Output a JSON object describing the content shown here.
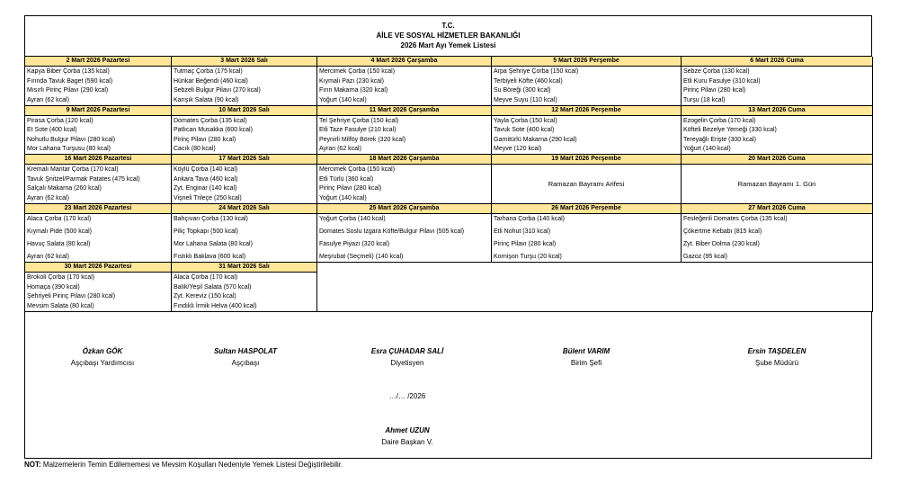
{
  "header": {
    "line1": "T.C.",
    "line2": "AİLE VE SOSYAL HİZMETLER BAKANLIĞI",
    "line3": "2026 Mart Ayı Yemek Listesi"
  },
  "weeks": [
    {
      "days": [
        {
          "date": "2 Mart 2026 Pazartesi",
          "items": [
            "Kapya Biber Çorba (135 kcal)",
            "Fırında Tavuk Baget (590 kcal)",
            "Mısırlı Pirinç Pilavı (290 kcal)",
            "Ayran (62 kcal)"
          ]
        },
        {
          "date": "3 Mart 2026 Salı",
          "items": [
            "Tutmaç Çorba (175 kcal)",
            "Hünkar Beğendi (460 kcal)",
            "Sebzeli Bulgur Pilavı (270 kcal)",
            "Karışık Salata (90 kcal)"
          ]
        },
        {
          "date": "4 Mart 2026 Çarşamba",
          "items": [
            "Mercimek Çorba (150 kcal)",
            "Kıymalı Pazı (230 kcal)",
            "Fırın Makarna (320 kcal)",
            "Yoğurt (140 kcal)"
          ]
        },
        {
          "date": "5 Mart 2026 Perşembe",
          "items": [
            "Arpa Şehriye Çorba (150 kcal)",
            "Terbiyeli Köfte (460 kcal)",
            "Su Böreği (300 kcal)",
            "Meyve Suyu (110 kcal)"
          ]
        },
        {
          "date": "6 Mart 2026 Cuma",
          "items": [
            "Sebze Çorba (130 kcal)",
            "Etli Kuru Fasulye (310 kcal)",
            "Pirinç Pilavı (280 kcal)",
            "Turşu (18 kcal)"
          ]
        }
      ]
    },
    {
      "days": [
        {
          "date": "9 Mart 2026 Pazartesi",
          "items": [
            "Pirasa Çorba (120 kcal)",
            "Et Sote (400 kcal)",
            "Nohutlu Bulgur Pilavı (280 kcal)",
            "Mor Lahana Turşusu (80 kcal)"
          ]
        },
        {
          "date": "10 Mart 2026 Salı",
          "items": [
            "Domates Çorba (135 kcal)",
            "Patlıcan Musakka (600 kcal)",
            "Pirinç Pilavı (280 kcal)",
            "Cacık (80 kcal)"
          ]
        },
        {
          "date": "11 Mart 2026 Çarşamba",
          "items": [
            "Tel Şehriye Çorba (150 kcal)",
            "Etli Taze Fasulye (210 kcal)",
            "Peynirli Milföy Börek (320 kcal)",
            "Ayran (62 kcal)"
          ]
        },
        {
          "date": "12 Mart 2026 Perşembe",
          "items": [
            "Yayla Çorba (150 kcal)",
            "Tavuk Sote (400 kcal)",
            "Garnitürlü Makarna (290 kcal)",
            "Meyve (120 kcal)"
          ]
        },
        {
          "date": "13 Mart 2026 Cuma",
          "items": [
            "Ezogelin Çorba (170 kcal)",
            "Köfteli Bezelye Yemeği (330 kcal)",
            "Tereyağlı Erişte (300 kcal)",
            "Yoğurt (140 kcal)"
          ]
        }
      ]
    },
    {
      "days": [
        {
          "date": "16 Mart 2026 Pazartesi",
          "items": [
            "Kremalı Mantar Çorba (170 kcal)",
            "Tavuk Şnitzel/Parmak Patates (475 kcal)",
            "Salçalı Makarna (260 kcal)",
            "Ayran (62 kcal)"
          ]
        },
        {
          "date": "17 Mart 2026 Salı",
          "items": [
            "Köylü Çorba (140 kcal)",
            "Ankara Tava (460 kcal)",
            "Zyt. Enginar (140 kcal)",
            "Vişneli Trileçe (250 kcal)"
          ]
        },
        {
          "date": "18 Mart 2026 Çarşamba",
          "items": [
            "Mercimek Çorba (150 kcal)",
            "Etli Türlü (360 kcal)",
            "Pirinç Pilavı (280 kcal)",
            "Yoğurt (140 kcal)"
          ]
        },
        {
          "date": "19 Mart 2026 Perşembe",
          "note": "Ramazan Bayramı Arifesi"
        },
        {
          "date": "20 Mart 2026 Cuma",
          "note": "Ramazan Bayramı 1. Gün"
        }
      ]
    },
    {
      "days": [
        {
          "date": "23 Mart 2026 Pazartesi",
          "items": [
            "Alaca Çorba (170 kcal)",
            "Kıymalı Pide (500 kcal)",
            "Havuç Salata (80 kcal)",
            "Ayran (62 kcal)"
          ]
        },
        {
          "date": "24 Mart 2026 Salı",
          "items": [
            "Bahçıvan Çorba (130 kcal)",
            "Piliç Topkapı (500 kcal)",
            "Mor Lahana Salata (80 kcal)",
            "Fıstıklı Baklava (600 kcal)"
          ]
        },
        {
          "date": "25 Mart 2026 Çarşamba",
          "items": [
            "Yoğurt Çorba (140 kcal)",
            "Domates Soslu Izgara Köfte/Bulgur Pilavı (505 kcal)",
            "Fasulye Piyazı (320 kcal)",
            "Meşrubat  (Seçmeli) (140 kcal)"
          ]
        },
        {
          "date": "26 Mart 2026 Perşembe",
          "items": [
            "Tarhana Çorba (140 kcal)",
            "Etli Nohut (310 kcal)",
            "Pirinç Pilavı (280 kcal)",
            "Kornişon Turşu (20 kcal)"
          ]
        },
        {
          "date": "27 Mart 2026 Cuma",
          "items": [
            "Fesleğenli Domates Çorba (135 kcal)",
            "Çökertme Kebabı (815 kcal)",
            "Zyt. Biber Dolma (230 kcal)",
            "Gazoz (95 kcal)"
          ]
        }
      ]
    },
    {
      "days": [
        {
          "date": "30 Mart 2026 Pazartesi",
          "items": [
            "Brokoli Çorba (170 kcal)",
            "Homaça (390 kcal)",
            "Şehriyeli Pirinç Pilavı (280 kcal)",
            "Mevsim Salata (80 kcal)"
          ]
        },
        {
          "date": "31 Mart 2026 Salı",
          "items": [
            "Alaca Çorba (170 kcal)",
            "Balık/Yeşil Salata (570 kcal)",
            "Zyt. Kereviz (150 kcal)",
            "Fındıklı İrmik Helva (400 kcal)"
          ]
        }
      ]
    }
  ],
  "signatures": [
    {
      "name": "Özkan GÖK",
      "title": "Aşçıbaşı Yardımcısı"
    },
    {
      "name": "Sultan HASPOLAT",
      "title": "Aşçıbaşı"
    },
    {
      "name": "Esra ÇUHADAR SALİ",
      "title": "Diyetisyen"
    },
    {
      "name": "Bülent VARIM",
      "title": "Birim Şefi"
    },
    {
      "name": "Ersin TAŞDELEN",
      "title": "Şube Müdürü"
    }
  ],
  "date_line": "…/… /2026",
  "approver": {
    "name": "Ahmet UZUN",
    "title": "Daire Başkan V."
  },
  "note": {
    "label": "NOT:",
    "text": "Malzemelerin Temin Edilememesi ve Mevsim Koşulları Nedeniyle Yemek Listesi Değiştirilebilir."
  }
}
